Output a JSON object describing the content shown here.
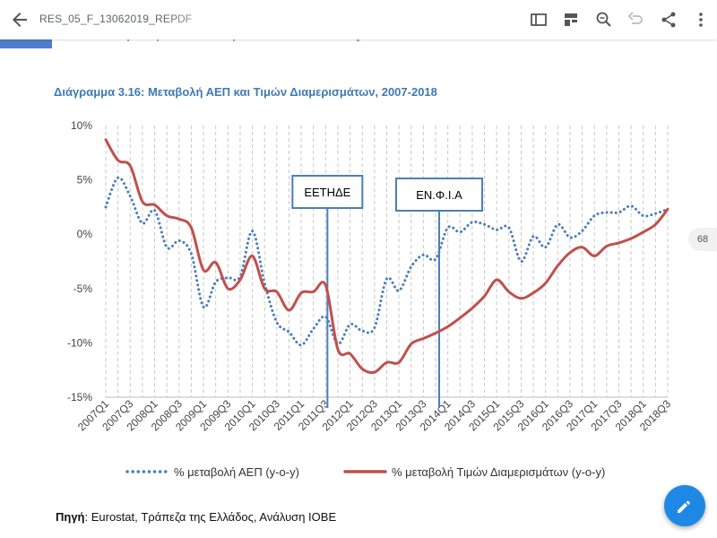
{
  "toolbar": {
    "doc_title": "RES_05_F_13062019_REP",
    "doc_type": "PDF",
    "icons": [
      "back-arrow-icon",
      "reader-view-icon",
      "layout-icon",
      "search-icon",
      "undo-icon",
      "share-icon",
      "more-vert-icon"
    ]
  },
  "page_number": "68",
  "chart_title": "Διάγραμμα 3.16: Μεταβολή ΑΕΠ και Τιμών Διαμερισμάτων, 2007-2018",
  "source": {
    "label": "Πηγή",
    "text": ": Eurostat, Τράπεζα της Ελλάδος, Ανάλυση ΙΟΒΕ"
  },
  "chart_data": {
    "type": "line",
    "y_unit": "%",
    "ylim": [
      -15,
      10
    ],
    "y_ticks": [
      "10%",
      "5%",
      "0%",
      "-5%",
      "-10%",
      "-15%"
    ],
    "categories": [
      "2007Q1",
      "2007Q2",
      "2007Q3",
      "2007Q4",
      "2008Q1",
      "2008Q2",
      "2008Q3",
      "2008Q4",
      "2009Q1",
      "2009Q2",
      "2009Q3",
      "2009Q4",
      "2010Q1",
      "2010Q2",
      "2010Q3",
      "2010Q4",
      "2011Q1",
      "2011Q2",
      "2011Q3",
      "2011Q4",
      "2012Q1",
      "2012Q2",
      "2012Q3",
      "2012Q4",
      "2013Q1",
      "2013Q2",
      "2013Q3",
      "2013Q4",
      "2014Q1",
      "2014Q2",
      "2014Q3",
      "2014Q4",
      "2015Q1",
      "2015Q2",
      "2015Q3",
      "2015Q4",
      "2016Q1",
      "2016Q2",
      "2016Q3",
      "2016Q4",
      "2017Q1",
      "2017Q2",
      "2017Q3",
      "2017Q4",
      "2018Q1",
      "2018Q2",
      "2018Q3"
    ],
    "x_tick_labels": [
      "2007Q1",
      "2007Q3",
      "2008Q1",
      "2008Q3",
      "2009Q1",
      "2009Q3",
      "2010Q1",
      "2010Q3",
      "2011Q1",
      "2011Q3",
      "2012Q1",
      "2012Q3",
      "2013Q1",
      "2013Q3",
      "2014Q1",
      "2014Q3",
      "2015Q1",
      "2015Q3",
      "2016Q1",
      "2016Q3",
      "2017Q1",
      "2017Q3",
      "2018Q1",
      "2018Q3"
    ],
    "grid": "vertical dashed",
    "legend": "bottom",
    "series": [
      {
        "name": "% μεταβολή ΑΕΠ (y-o-y)",
        "style": "dotted",
        "color": "#4a7ebb",
        "values": [
          2.5,
          5.2,
          3.5,
          1.0,
          2.2,
          -1.2,
          -0.6,
          -1.8,
          -6.7,
          -4.4,
          -4.0,
          -3.9,
          0.3,
          -4.5,
          -8.1,
          -9.0,
          -10.2,
          -8.7,
          -7.6,
          -10.1,
          -8.3,
          -8.9,
          -8.6,
          -4.1,
          -5.2,
          -3.0,
          -1.9,
          -2.3,
          0.6,
          0.2,
          1.1,
          0.9,
          0.4,
          0.6,
          -2.5,
          -0.2,
          -1.2,
          0.9,
          -0.3,
          0.3,
          1.7,
          2.0,
          2.0,
          2.6,
          1.7,
          1.9,
          2.3
        ]
      },
      {
        "name": "% μεταβολή Τιμών Διαμερισμάτων (y-o-y)",
        "style": "solid",
        "color": "#c0504d",
        "values": [
          8.7,
          6.8,
          6.3,
          3.0,
          2.7,
          1.7,
          1.4,
          0.6,
          -3.3,
          -2.6,
          -5.0,
          -4.2,
          -2.0,
          -5.0,
          -5.3,
          -7.0,
          -5.4,
          -5.3,
          -4.7,
          -10.6,
          -11.0,
          -12.4,
          -12.7,
          -11.8,
          -11.8,
          -10.1,
          -9.6,
          -9.1,
          -8.5,
          -7.7,
          -6.8,
          -5.7,
          -4.2,
          -5.3,
          -5.9,
          -5.4,
          -4.5,
          -2.9,
          -1.7,
          -1.2,
          -2.0,
          -1.1,
          -0.8,
          -0.4,
          0.2,
          0.9,
          2.3
        ]
      }
    ],
    "annotations": [
      {
        "label": "ΕΕΤΗΔΕ",
        "at": "2011Q3"
      },
      {
        "label": "ΕΝ.Φ.Ι.Α",
        "at": "2013Q4"
      }
    ]
  }
}
